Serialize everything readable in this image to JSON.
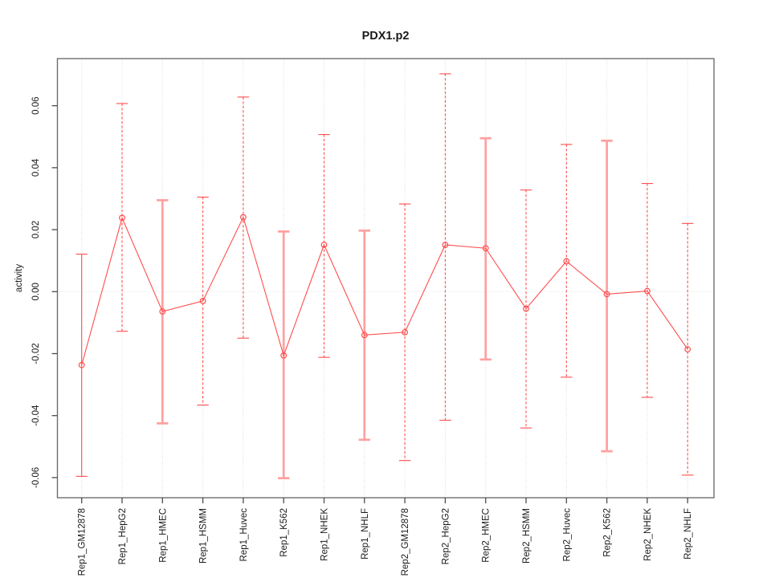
{
  "page": {
    "background": "#ffffff"
  },
  "chart_data": {
    "type": "line",
    "title": "PDX1.p2",
    "xlabel": "",
    "ylabel": "activity",
    "legend_position": "none",
    "categories": [
      "Rep1_GM12878",
      "Rep1_HepG2",
      "Rep1_HMEC",
      "Rep1_HSMM",
      "Rep1_Huvec",
      "Rep1_K562",
      "Rep1_NHEK",
      "Rep1_NHLF",
      "Rep2_GM12878",
      "Rep2_HepG2",
      "Rep2_HMEC",
      "Rep2_HSMM",
      "Rep2_Huvec",
      "Rep2_K562",
      "Rep2_NHEK",
      "Rep2_NHLF"
    ],
    "values": [
      -0.0237,
      0.0238,
      -0.0064,
      -0.003,
      0.024,
      -0.0206,
      0.0151,
      -0.014,
      -0.0131,
      0.0151,
      0.014,
      -0.0055,
      0.0098,
      -0.0008,
      0.0002,
      -0.0186
    ],
    "error_upper": [
      0.0121,
      0.0607,
      0.0295,
      0.0305,
      0.0628,
      0.0194,
      0.0507,
      0.0197,
      0.0283,
      0.0703,
      0.0495,
      0.0328,
      0.0475,
      0.0487,
      0.0349,
      0.022
    ],
    "error_lower": [
      -0.0596,
      -0.0128,
      -0.0425,
      -0.0366,
      -0.015,
      -0.0602,
      -0.0212,
      -0.0478,
      -0.0545,
      -0.0415,
      -0.0219,
      -0.044,
      -0.0276,
      -0.0515,
      -0.0341,
      -0.0592
    ],
    "bar_styles": [
      "thin-solid",
      "thin-dashed",
      "thick-solid",
      "thin-dashed",
      "thin-dashed",
      "thick-solid",
      "thin-dashed",
      "thick-solid",
      "thin-dashed",
      "thin-dashed",
      "thick-solid",
      "thin-dashed",
      "thin-dashed",
      "thick-solid",
      "thin-dashed",
      "thin-dashed"
    ],
    "marker": "open-circle",
    "ylim": [
      -0.0665,
      0.0752
    ],
    "yticks": [
      -0.06,
      -0.04,
      -0.02,
      0,
      0.02,
      0.04,
      0.06
    ],
    "ytick_labels": [
      "-0.06",
      "-0.04",
      "-0.02",
      "0.00",
      "0.02",
      "0.04",
      "0.06"
    ],
    "grid": {
      "vertical_at_categories": true,
      "horizontal_at_zero": true,
      "style": "dotted"
    },
    "colors": {
      "series": "#ff4d4d",
      "thick_error_bar": "#ffa0a0",
      "grid": "#dcdcdc",
      "zero_line": "#e3e3e3",
      "axis_box": "#6e6e6e",
      "tick": "#4d4d4d",
      "text": "#1a1a1a"
    }
  }
}
